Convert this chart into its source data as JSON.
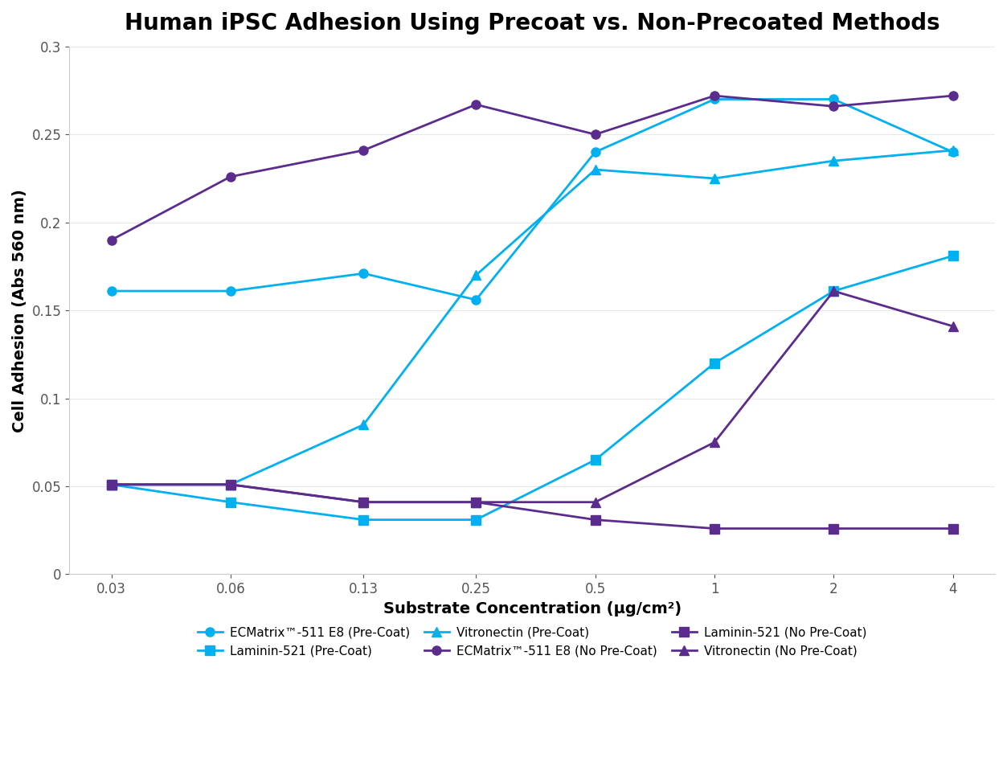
{
  "title": "Human iPSC Adhesion Using Precoat vs. Non-Precoated Methods",
  "xlabel": "Substrate Concentration (μg/cm²)",
  "ylabel": "Cell Adhesion (Abs 560 nm)",
  "x_values": [
    0.03,
    0.06,
    0.13,
    0.25,
    0.5,
    1,
    2,
    4
  ],
  "x_labels": [
    "0.03",
    "0.06",
    "0.13",
    "0.25",
    "0.5",
    "1",
    "2",
    "4"
  ],
  "ylim": [
    0,
    0.3
  ],
  "yticks": [
    0,
    0.05,
    0.1,
    0.15,
    0.2,
    0.25,
    0.3
  ],
  "series": [
    {
      "label": "ECMatrix™-511 E8 (Pre-Coat)",
      "color": "#00B0F0",
      "marker": "o",
      "values": [
        0.161,
        0.161,
        0.171,
        0.156,
        0.24,
        0.27,
        0.27,
        0.24
      ]
    },
    {
      "label": "Laminin-521 (Pre-Coat)",
      "color": "#00B0F0",
      "marker": "s",
      "values": [
        0.051,
        0.041,
        0.031,
        0.031,
        0.065,
        0.12,
        0.161,
        0.181
      ]
    },
    {
      "label": "Vitronectin (Pre-Coat)",
      "color": "#00B0F0",
      "marker": "^",
      "values": [
        0.051,
        0.051,
        0.085,
        0.17,
        0.23,
        0.225,
        0.235,
        0.241
      ]
    },
    {
      "label": "ECMatrix™-511 E8 (No Pre-Coat)",
      "color": "#5B2C8D",
      "marker": "o",
      "values": [
        0.19,
        0.226,
        0.241,
        0.267,
        0.25,
        0.272,
        0.266,
        0.272
      ]
    },
    {
      "label": "Laminin-521 (No Pre-Coat)",
      "color": "#5B2C8D",
      "marker": "s",
      "values": [
        0.051,
        0.051,
        0.041,
        0.041,
        0.031,
        0.026,
        0.026,
        0.026
      ]
    },
    {
      "label": "Vitronectin (No Pre-Coat)",
      "color": "#5B2C8D",
      "marker": "^",
      "values": [
        0.051,
        0.051,
        0.041,
        0.041,
        0.041,
        0.075,
        0.161,
        0.141
      ]
    }
  ],
  "background_color": "#FFFFFF",
  "title_fontsize": 20,
  "label_fontsize": 14,
  "tick_fontsize": 12,
  "legend_fontsize": 11,
  "linewidth": 2,
  "markersize": 8
}
